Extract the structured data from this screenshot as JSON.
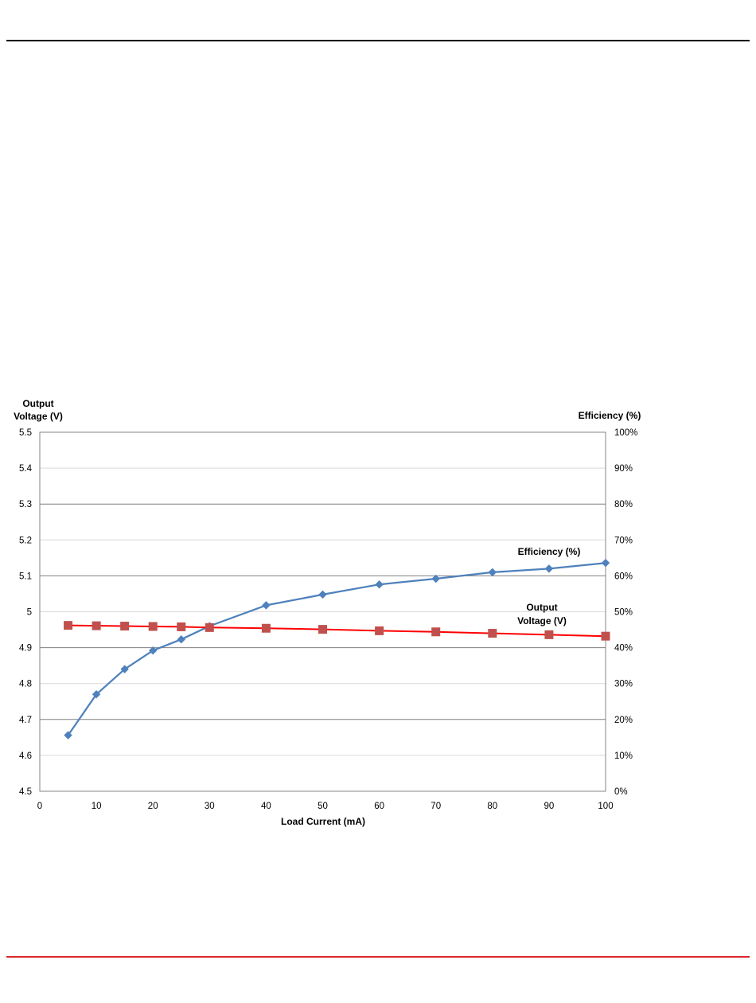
{
  "page": {
    "rule_bottom_color": "#d9252a"
  },
  "chart_data": {
    "type": "line",
    "xlabel": "Load Current (mA)",
    "ylabel_left_line1": "Output",
    "ylabel_left_line2": "Voltage (V)",
    "ylabel_right": "Efficiency (%)",
    "xlim": [
      0,
      100
    ],
    "ylim_left": [
      4.5,
      5.5
    ],
    "ylim_right": [
      0,
      100
    ],
    "x_ticks": [
      "0",
      "10",
      "20",
      "30",
      "40",
      "50",
      "60",
      "70",
      "80",
      "90",
      "100"
    ],
    "y_left_ticks": [
      "4.5",
      "4.6",
      "4.7",
      "4.8",
      "4.9",
      "5",
      "5.1",
      "5.2",
      "5.3",
      "5.4",
      "5.5"
    ],
    "y_right_ticks": [
      "0%",
      "10%",
      "20%",
      "30%",
      "40%",
      "50%",
      "60%",
      "70%",
      "80%",
      "90%",
      "100%"
    ],
    "grid": true,
    "series": [
      {
        "key": "efficiency",
        "axis": "right",
        "color": "#4f81bd",
        "marker": "diamond",
        "label_line1": "Efficiency (%)",
        "label_line2": "",
        "x": [
          5,
          10,
          15,
          20,
          25,
          30,
          40,
          50,
          60,
          70,
          80,
          90,
          100
        ],
        "y": [
          15.6,
          27.0,
          34.0,
          39.2,
          42.3,
          46.0,
          51.8,
          54.8,
          57.6,
          59.2,
          61.0,
          62.0,
          63.6
        ]
      },
      {
        "key": "output_voltage",
        "axis": "left",
        "color": "#ff0000",
        "marker_color": "#c0504d",
        "marker": "square",
        "label_line1": "Output",
        "label_line2": "Voltage (V)",
        "x": [
          5,
          10,
          15,
          20,
          25,
          30,
          40,
          50,
          60,
          70,
          80,
          90,
          100
        ],
        "y": [
          4.962,
          4.961,
          4.96,
          4.959,
          4.958,
          4.956,
          4.954,
          4.951,
          4.947,
          4.944,
          4.94,
          4.936,
          4.932
        ]
      }
    ]
  }
}
